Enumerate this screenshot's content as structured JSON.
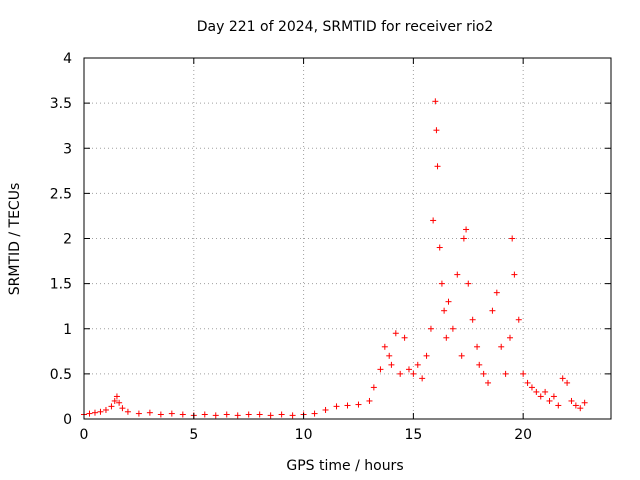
{
  "chart_data": {
    "type": "scatter",
    "title": "Day 221 of 2024, SRMTID for receiver rio2",
    "xlabel": "GPS time / hours",
    "ylabel": "SRMTID / TECUs",
    "xlim": [
      0,
      24
    ],
    "ylim": [
      0,
      4
    ],
    "x_ticks": [
      0,
      5,
      10,
      15,
      20
    ],
    "x_tick_labels": [
      "0",
      "5",
      "10",
      "15",
      "20"
    ],
    "y_ticks": [
      0,
      0.5,
      1,
      1.5,
      2,
      2.5,
      3,
      3.5,
      4
    ],
    "y_tick_labels": [
      "0",
      "0.5",
      "1",
      "1.5",
      "2",
      "2.5",
      "3",
      "3.5",
      "4"
    ],
    "grid": true,
    "marker": "+",
    "color": "#ff0000",
    "series": [
      {
        "name": "SRMTID",
        "x": [
          0.0,
          0.25,
          0.5,
          0.75,
          1.0,
          1.25,
          1.4,
          1.5,
          1.6,
          1.75,
          2.0,
          2.5,
          3.0,
          3.5,
          4.0,
          4.5,
          5.0,
          5.5,
          6.0,
          6.5,
          7.0,
          7.5,
          8.0,
          8.5,
          9.0,
          9.5,
          10.0,
          10.5,
          11.0,
          11.5,
          12.0,
          12.5,
          13.0,
          13.2,
          13.5,
          13.7,
          13.9,
          14.0,
          14.2,
          14.4,
          14.6,
          14.8,
          15.0,
          15.2,
          15.4,
          15.6,
          15.8,
          15.9,
          16.0,
          16.05,
          16.1,
          16.2,
          16.3,
          16.4,
          16.5,
          16.6,
          16.8,
          17.0,
          17.2,
          17.3,
          17.4,
          17.5,
          17.7,
          17.9,
          18.0,
          18.2,
          18.4,
          18.6,
          18.8,
          19.0,
          19.2,
          19.4,
          19.5,
          19.6,
          19.8,
          20.0,
          20.2,
          20.4,
          20.6,
          20.8,
          21.0,
          21.2,
          21.4,
          21.6,
          21.8,
          22.0,
          22.2,
          22.4,
          22.6,
          22.8
        ],
        "y": [
          0.05,
          0.06,
          0.07,
          0.08,
          0.1,
          0.14,
          0.2,
          0.25,
          0.18,
          0.12,
          0.08,
          0.06,
          0.07,
          0.05,
          0.06,
          0.05,
          0.04,
          0.05,
          0.04,
          0.05,
          0.04,
          0.05,
          0.05,
          0.04,
          0.05,
          0.04,
          0.05,
          0.06,
          0.1,
          0.14,
          0.15,
          0.16,
          0.2,
          0.35,
          0.55,
          0.8,
          0.7,
          0.6,
          0.95,
          0.5,
          0.9,
          0.55,
          0.5,
          0.6,
          0.45,
          0.7,
          1.0,
          2.2,
          3.52,
          3.2,
          2.8,
          1.9,
          1.5,
          1.2,
          0.9,
          1.3,
          1.0,
          1.6,
          0.7,
          2.0,
          2.1,
          1.5,
          1.1,
          0.8,
          0.6,
          0.5,
          0.4,
          1.2,
          1.4,
          0.8,
          0.5,
          0.9,
          2.0,
          1.6,
          1.1,
          0.5,
          0.4,
          0.35,
          0.3,
          0.25,
          0.3,
          0.2,
          0.25,
          0.15,
          0.45,
          0.4,
          0.2,
          0.15,
          0.12,
          0.18
        ]
      }
    ]
  }
}
